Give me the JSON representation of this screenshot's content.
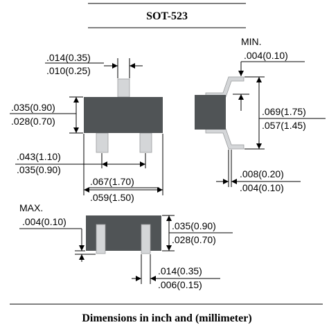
{
  "title": "SOT-523",
  "footer": "Dimensions in inch and (millimeter)",
  "labels": {
    "lead_width_max": ".014(0.35)",
    "lead_width_min": ".010(0.25)",
    "body_height_max": ".035(0.90)",
    "body_height_min": ".028(0.70)",
    "lead_pitch_max": ".043(1.10)",
    "lead_pitch_min": ".035(0.90)",
    "body_width_max": ".067(1.70)",
    "body_width_min": ".059(1.50)",
    "side_min_caption": "MIN.",
    "side_min_value": ".004(0.10)",
    "overall_height_max": ".069(1.75)",
    "overall_height_min": ".057(1.45)",
    "lead_thick_max": ".008(0.20)",
    "lead_thick_min": ".004(0.10)",
    "standoff_caption": "MAX.",
    "standoff_value": ".004(0.10)",
    "profile_height_max": ".035(0.90)",
    "profile_height_min": ".028(0.70)",
    "foot_length_max": ".014(0.35)",
    "foot_length_min": ".006(0.15)"
  }
}
